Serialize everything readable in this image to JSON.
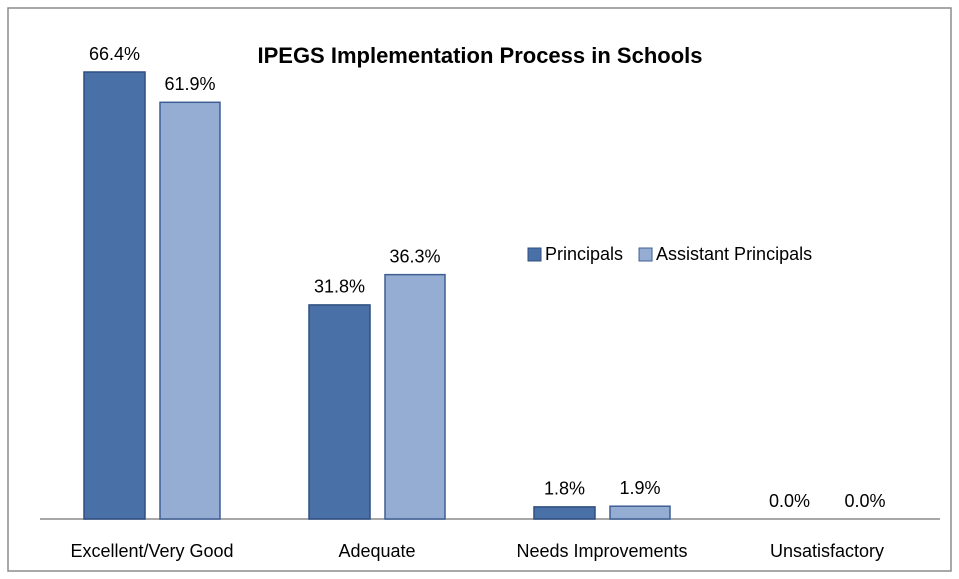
{
  "chart_data": {
    "type": "bar",
    "title": "IPEGS Implementation Process in Schools",
    "categories": [
      "Excellent/Very Good",
      "Adequate",
      "Needs Improvements",
      "Unsatisfactory"
    ],
    "series": [
      {
        "name": "Principals",
        "color": "#4a70a8",
        "values": [
          66.4,
          31.8,
          1.8,
          0.0
        ],
        "value_labels": [
          "66.4%",
          "31.8%",
          "1.8%",
          "0.0%"
        ]
      },
      {
        "name": "Assistant Principals",
        "color": "#95acd3",
        "values": [
          61.9,
          36.3,
          1.9,
          0.0
        ],
        "value_labels": [
          "61.9%",
          "36.3%",
          "1.9%",
          "0.0%"
        ]
      }
    ],
    "legend": "right"
  }
}
